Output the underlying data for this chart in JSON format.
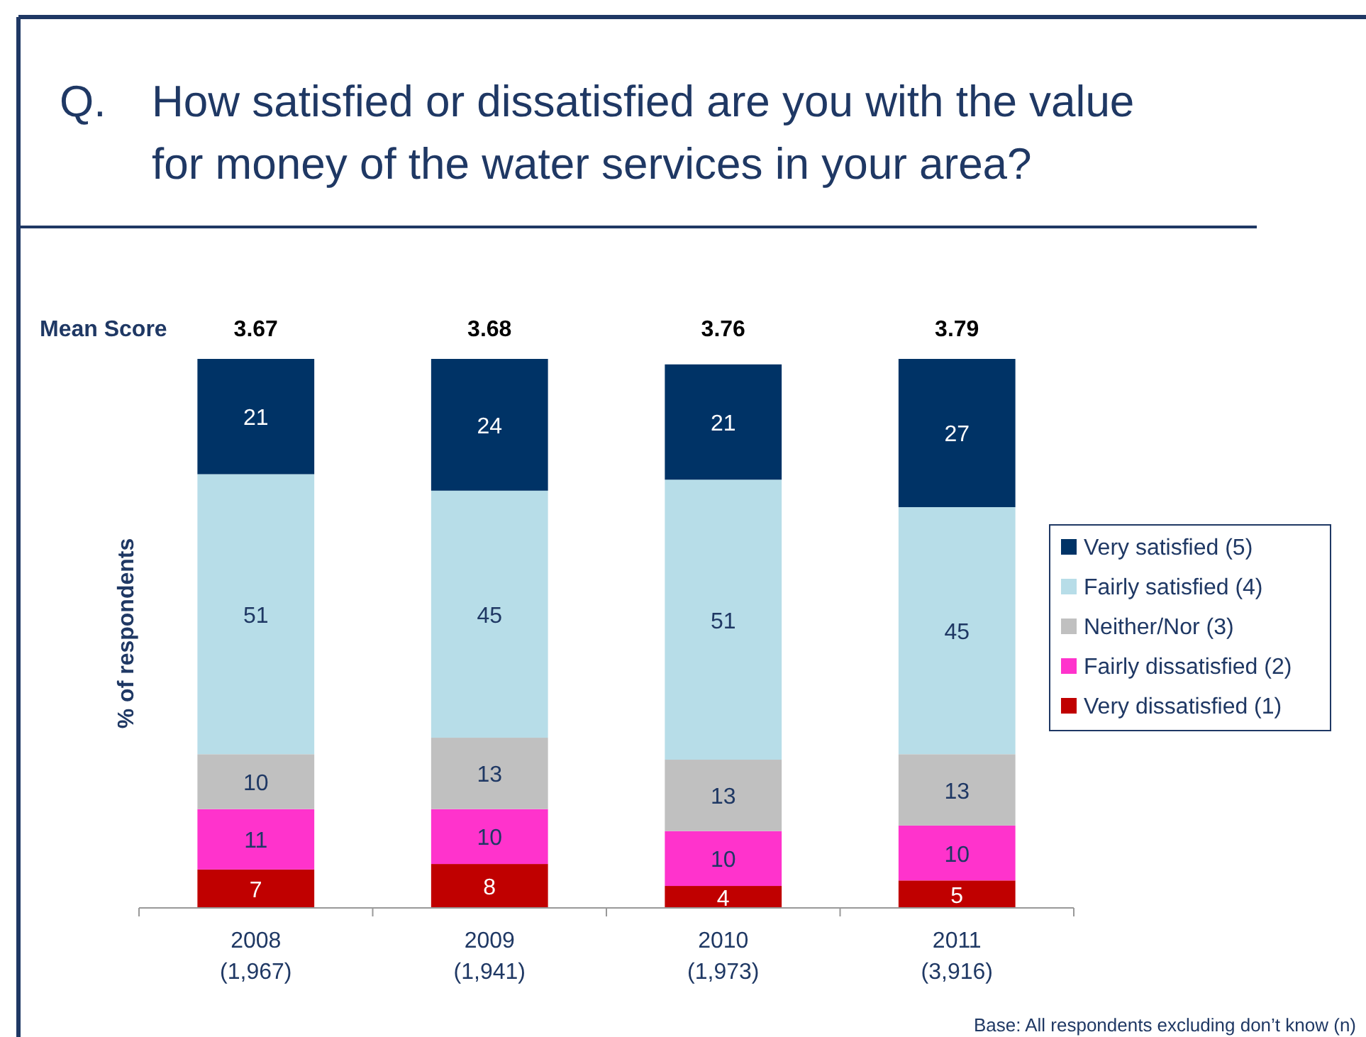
{
  "chart_data": {
    "type": "bar",
    "stacked": true,
    "title": "Q.  How satisfied or dissatisfied are you with the value for money of the water services in your area?",
    "ylabel": "% of respondents",
    "categories": [
      "2008\n(1,967)",
      "2009\n(1,941)",
      "2010\n(1,973)",
      "2011\n(3,916)"
    ],
    "series": [
      {
        "name": "Very dissatisfied (1)",
        "color": "#c00000",
        "values": [
          7,
          8,
          4,
          5
        ]
      },
      {
        "name": "Fairly dissatisfied (2)",
        "color": "#ff33cc",
        "values": [
          11,
          10,
          10,
          10
        ]
      },
      {
        "name": "Neither/Nor (3)",
        "color": "#c0c0c0",
        "values": [
          10,
          13,
          13,
          13
        ]
      },
      {
        "name": "Fairly satisfied (4)",
        "color": "#b7dde8",
        "values": [
          51,
          45,
          51,
          45
        ]
      },
      {
        "name": "Very satisfied (5)",
        "color": "#003366",
        "values": [
          21,
          24,
          21,
          27
        ]
      }
    ],
    "data_labels": true,
    "legend": "right",
    "annotations": [
      "Mean Score",
      "3.67",
      "3.68",
      "3.76",
      "3.79",
      "Base: All respondents excluding don’t know (n)"
    ]
  }
}
